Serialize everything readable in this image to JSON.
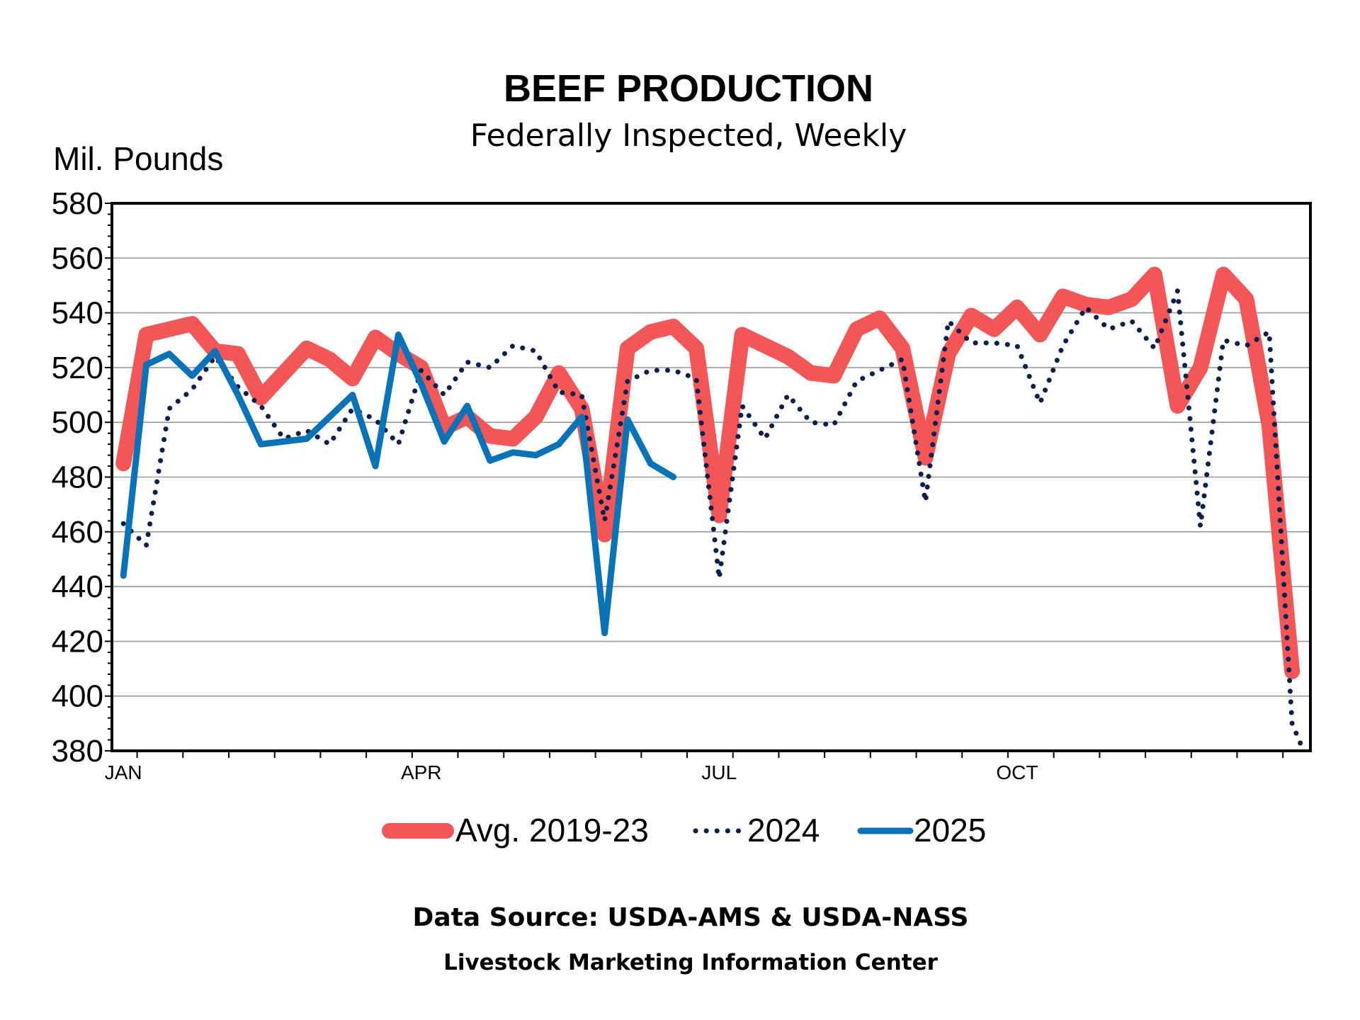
{
  "chart_data": {
    "type": "line",
    "title": "BEEF PRODUCTION",
    "subtitle": "Federally Inspected, Weekly",
    "ylabel": "Mil. Pounds",
    "ylim": [
      380,
      580
    ],
    "yticks": [
      "380",
      "400",
      "420",
      "440",
      "460",
      "480",
      "500",
      "520",
      "540",
      "560",
      "580"
    ],
    "xlim": [
      0.5,
      52.8
    ],
    "x_tick_labels": [
      {
        "label": "JAN",
        "week": 1
      },
      {
        "label": "APR",
        "week": 14
      },
      {
        "label": "JUL",
        "week": 27
      },
      {
        "label": "OCT",
        "week": 40
      }
    ],
    "grid": true,
    "legend": "bottom",
    "series": [
      {
        "name": "Avg. 2019-23",
        "color": "#f25656",
        "style": "thick",
        "x": [
          1,
          2,
          3,
          4,
          5,
          6,
          7,
          8,
          9,
          10,
          11,
          12,
          13,
          14,
          15,
          16,
          17,
          18,
          19,
          20,
          21,
          22,
          23,
          24,
          25,
          26,
          27,
          28,
          29,
          30,
          31,
          32,
          33,
          34,
          35,
          36,
          37,
          38,
          39,
          40,
          41,
          42,
          43,
          44,
          45,
          46,
          47,
          48,
          49,
          50,
          51,
          52
        ],
        "values": [
          485,
          532,
          534,
          536,
          526,
          525,
          509,
          518,
          527,
          523,
          516,
          531,
          525,
          520,
          498,
          502,
          495,
          494,
          502,
          518,
          505,
          459,
          527,
          533,
          535,
          527,
          466,
          532,
          528,
          524,
          518,
          517,
          534,
          538,
          527,
          487,
          525,
          539,
          534,
          542,
          532,
          546,
          543,
          542,
          545,
          554,
          506,
          520,
          554,
          545,
          499,
          409
        ]
      },
      {
        "name": "2024",
        "color": "#0d1f4f",
        "style": "dotted",
        "x": [
          1,
          2,
          3,
          4,
          5,
          6,
          7,
          8,
          9,
          10,
          11,
          12,
          13,
          14,
          15,
          16,
          17,
          18,
          19,
          20,
          21,
          22,
          23,
          24,
          25,
          26,
          27,
          28,
          29,
          30,
          31,
          32,
          33,
          34,
          35,
          36,
          37,
          38,
          39,
          40,
          41,
          42,
          43,
          44,
          45,
          46,
          47,
          48,
          49,
          50,
          51,
          52,
          52.5
        ],
        "values": [
          463,
          455,
          505,
          512,
          524,
          513,
          506,
          494,
          497,
          492,
          505,
          501,
          492,
          519,
          510,
          522,
          520,
          528,
          526,
          511,
          510,
          464,
          515,
          519,
          519,
          516,
          443,
          506,
          494,
          510,
          500,
          499,
          515,
          519,
          523,
          471,
          537,
          529,
          529,
          528,
          507,
          528,
          542,
          534,
          537,
          527,
          548,
          462,
          530,
          528,
          533,
          390,
          380
        ]
      },
      {
        "name": "2025",
        "color": "#0a73b8",
        "style": "solid",
        "x": [
          1,
          2,
          3,
          4,
          5,
          6,
          7,
          8,
          9,
          10,
          11,
          12,
          13,
          14,
          15,
          16,
          17,
          18,
          19,
          20,
          21,
          22,
          23,
          24,
          25
        ],
        "values": [
          444,
          521,
          525,
          517,
          526,
          510,
          492,
          493,
          494,
          502,
          510,
          484,
          532,
          514,
          493,
          506,
          486,
          489,
          488,
          492,
          502,
          423,
          501,
          485,
          480
        ]
      }
    ],
    "footer": {
      "source": "Data Source:  USDA-AMS & USDA-NASS",
      "center": "Livestock Marketing Information Center"
    }
  }
}
